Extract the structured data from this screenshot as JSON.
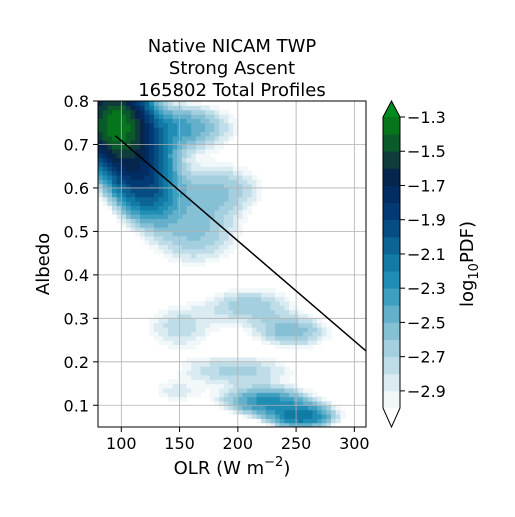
{
  "chart_data": {
    "type": "contour",
    "title": [
      "Native NICAM TWP",
      "Strong Ascent",
      "165802 Total Profiles"
    ],
    "xlabel": "OLR (W m",
    "xlabel_sup": "−2",
    "xlabel_close": ")",
    "ylabel": "Albedo",
    "xlim": [
      80,
      310
    ],
    "ylim": [
      0.05,
      0.8
    ],
    "xticks": [
      100,
      150,
      200,
      250,
      300
    ],
    "yticks": [
      0.1,
      0.2,
      0.3,
      0.4,
      0.5,
      0.6,
      0.7,
      0.8
    ],
    "grid": true,
    "colorbar": {
      "label": "log",
      "label_sub": "10",
      "label_rest": "PDF)",
      "levels": [
        -3.0,
        -2.9,
        -2.8,
        -2.7,
        -2.6,
        -2.5,
        -2.4,
        -2.3,
        -2.2,
        -2.1,
        -2.0,
        -1.9,
        -1.8,
        -1.7,
        -1.6,
        -1.5,
        -1.4,
        -1.3
      ],
      "tick_values": [
        -2.9,
        -2.7,
        -2.5,
        -2.3,
        -2.1,
        -1.9,
        -1.7,
        -1.5,
        -1.3
      ],
      "tick_labels": [
        "−2.9",
        "−2.7",
        "−2.5",
        "−2.3",
        "−2.1",
        "−1.9",
        "−1.7",
        "−1.5",
        "−1.3"
      ],
      "colors": [
        "#f2f8fa",
        "#daebf1",
        "#bfdde8",
        "#a4cfdf",
        "#86c0d5",
        "#64b0cb",
        "#3f9fc0",
        "#1f8db4",
        "#117aa5",
        "#0b6494",
        "#064d82",
        "#033a74",
        "#022d62",
        "#07264e",
        "#0e3d3c",
        "#0a5a2a",
        "#06751c"
      ],
      "extend_low_color": "#ffffff",
      "extend_high_color": "#008a1f"
    },
    "reference_line": {
      "x": [
        95,
        310
      ],
      "y": [
        0.72,
        0.225
      ]
    }
  }
}
